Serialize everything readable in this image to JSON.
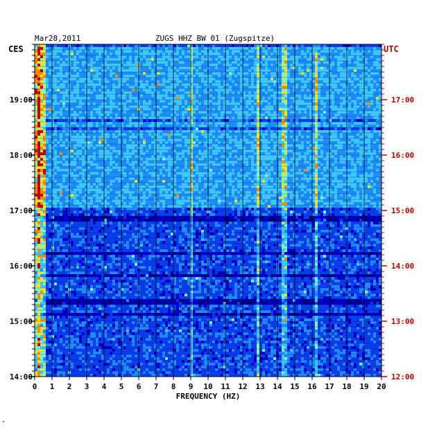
{
  "chart_data": {
    "type": "heatmap",
    "title": "ZUGS HHZ BW 01 (Zugspitze)",
    "date": "Mar28,2011",
    "xlabel": "FREQUENCY (HZ)",
    "xlim": [
      0,
      20
    ],
    "x_ticks": [
      "0",
      "1",
      "2",
      "3",
      "4",
      "5",
      "6",
      "7",
      "8",
      "9",
      "10",
      "11",
      "12",
      "13",
      "14",
      "15",
      "16",
      "17",
      "18",
      "19",
      "20"
    ],
    "left_axis_label": "CES",
    "right_axis_label": "UTC",
    "left_ticks": [
      "19:00",
      "18:00",
      "17:00",
      "16:00",
      "15:00",
      "14:00"
    ],
    "right_ticks": [
      "17:00",
      "16:00",
      "15:00",
      "14:00",
      "13:00",
      "12:00"
    ],
    "time_range_local": [
      "14:00",
      "19:45"
    ],
    "colormap": [
      "#00007a",
      "#0000c8",
      "#0a3cf0",
      "#1e8cff",
      "#3cc8ff",
      "#7ff2c8",
      "#e6e632",
      "#ff8c00",
      "#c80000"
    ],
    "strong_lines_hz": [
      0.2,
      9.0,
      12.8,
      14.3,
      16.2
    ],
    "grid": true
  },
  "footer_mark": "\""
}
